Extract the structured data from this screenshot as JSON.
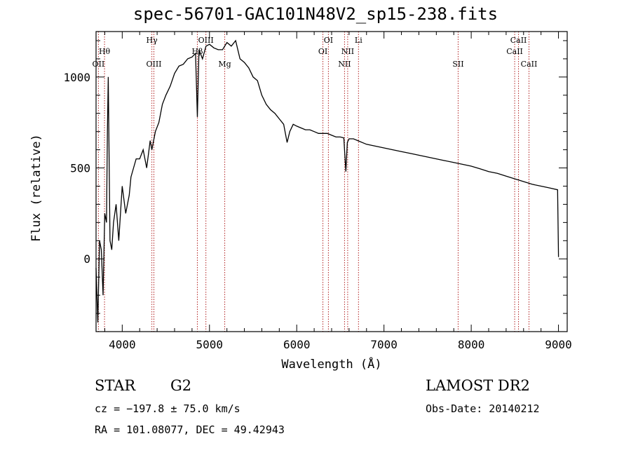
{
  "chart_data": {
    "type": "line",
    "title": "spec-56701-GAC101N48V2_sp15-238.fits",
    "xlabel": "Wavelength (Å)",
    "ylabel": "Flux (relative)",
    "xlim": [
      3700,
      9100
    ],
    "ylim": [
      -400,
      1250
    ],
    "xticks": [
      4000,
      5000,
      6000,
      7000,
      8000,
      9000
    ],
    "yticks": [
      0,
      500,
      1000
    ],
    "grid": false,
    "series": [
      {
        "x": [
          3700,
          3720,
          3740,
          3760,
          3780,
          3800,
          3820,
          3830,
          3840,
          3860,
          3880,
          3900,
          3930,
          3960,
          4000,
          4040,
          4080,
          4100,
          4130,
          4160,
          4200,
          4240,
          4280,
          4320,
          4340,
          4380,
          4420,
          4460,
          4500,
          4550,
          4600,
          4650,
          4700,
          4750,
          4800,
          4840,
          4861,
          4880,
          4920,
          4960,
          5000,
          5050,
          5100,
          5150,
          5200,
          5250,
          5300,
          5350,
          5400,
          5450,
          5500,
          5550,
          5600,
          5650,
          5700,
          5750,
          5800,
          5850,
          5890,
          5920,
          5960,
          6000,
          6050,
          6100,
          6150,
          6200,
          6250,
          6300,
          6350,
          6400,
          6450,
          6500,
          6540,
          6563,
          6580,
          6600,
          6650,
          6700,
          6800,
          6900,
          7000,
          7100,
          7200,
          7300,
          7400,
          7500,
          7600,
          7700,
          7800,
          7900,
          8000,
          8100,
          8200,
          8300,
          8400,
          8500,
          8600,
          8700,
          8800,
          8900,
          8990,
          9000
        ],
        "y": [
          -50,
          -350,
          100,
          50,
          -200,
          250,
          200,
          700,
          1000,
          100,
          50,
          200,
          300,
          100,
          400,
          250,
          350,
          450,
          500,
          550,
          550,
          600,
          500,
          650,
          600,
          700,
          750,
          850,
          900,
          950,
          1020,
          1060,
          1070,
          1100,
          1110,
          1130,
          780,
          1150,
          1100,
          1170,
          1180,
          1160,
          1150,
          1150,
          1190,
          1170,
          1200,
          1100,
          1080,
          1050,
          1000,
          980,
          900,
          850,
          820,
          800,
          770,
          740,
          640,
          700,
          740,
          730,
          720,
          710,
          710,
          700,
          690,
          690,
          690,
          680,
          670,
          670,
          665,
          480,
          640,
          660,
          660,
          650,
          630,
          620,
          610,
          600,
          590,
          580,
          570,
          560,
          550,
          540,
          530,
          520,
          510,
          495,
          480,
          470,
          455,
          440,
          425,
          410,
          400,
          390,
          380,
          10
        ]
      }
    ],
    "lines": [
      {
        "name": "Hθ",
        "x": 3797,
        "row": 0
      },
      {
        "name": "OII",
        "x": 3727,
        "row": 1
      },
      {
        "name": "Hγ",
        "x": 4340,
        "row": -1
      },
      {
        "name": "OIII",
        "x": 4363,
        "row": 1
      },
      {
        "name": "Hβ",
        "x": 4861,
        "row": 0
      },
      {
        "name": "OIII",
        "x": 4959,
        "row": -1
      },
      {
        "name": "Mg",
        "x": 5175,
        "row": 1
      },
      {
        "name": "OI",
        "x": 6300,
        "row": 0
      },
      {
        "name": "OI",
        "x": 6363,
        "row": -1
      },
      {
        "name": "NII",
        "x": 6548,
        "row": 1
      },
      {
        "name": "NII",
        "x": 6584,
        "row": 0
      },
      {
        "name": "Li",
        "x": 6708,
        "row": -1
      },
      {
        "name": "SII",
        "x": 7850,
        "row": 1
      },
      {
        "name": "CaII",
        "x": 8498,
        "row": 0
      },
      {
        "name": "CaII",
        "x": 8542,
        "row": -1
      },
      {
        "name": "CaII",
        "x": 8662,
        "row": 1
      }
    ],
    "line_color": "#b22222"
  },
  "info": {
    "object_class": "STAR",
    "subclass": "G2",
    "survey": "LAMOST DR2",
    "cz": "cz = −197.8 ± 75.0 km/s",
    "obs_date": "Obs-Date: 20140212",
    "coords": "RA = 101.08077, DEC =  49.42943"
  }
}
